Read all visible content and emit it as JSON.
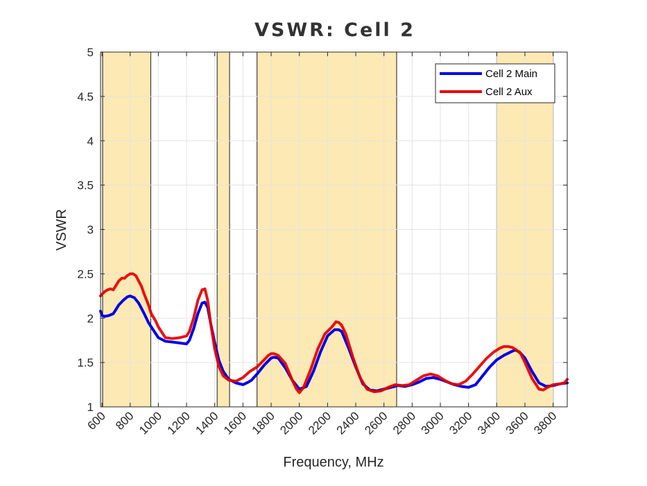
{
  "chart_data": {
    "type": "line",
    "title": "VSWR: Cell 2",
    "xlabel": "Frequency, MHz",
    "ylabel": "VSWR",
    "xlim": [
      590,
      3900
    ],
    "ylim": [
      1,
      5
    ],
    "grid": true,
    "legend_position": "top-right",
    "x_ticks": [
      600,
      800,
      1000,
      1200,
      1400,
      1600,
      1800,
      2000,
      2200,
      2400,
      2600,
      2800,
      3000,
      3200,
      3400,
      3600,
      3800
    ],
    "x_tick_labels": [
      "600",
      "800",
      "1000",
      "1200",
      "1400",
      "1600",
      "1800",
      "2000",
      "2200",
      "2400",
      "2600",
      "2800",
      "3000",
      "3200",
      "3400",
      "3600",
      "3800"
    ],
    "y_ticks": [
      1,
      1.5,
      2,
      2.5,
      3,
      3.5,
      4,
      4.5,
      5
    ],
    "y_tick_labels": [
      "1",
      "1.5",
      "2",
      "2.5",
      "3",
      "3.5",
      "4",
      "4.5",
      "5"
    ],
    "bands": [
      {
        "start": 605,
        "end": 946
      },
      {
        "start": 1417,
        "end": 1505
      },
      {
        "start": 1700,
        "end": 2690
      },
      {
        "start": 3400,
        "end": 3800
      }
    ],
    "band_color": "#fde9b3",
    "series": [
      {
        "name": "Cell 2 Main",
        "color": "#0000e6",
        "x": [
          590,
          600,
          620,
          650,
          680,
          700,
          720,
          750,
          780,
          800,
          830,
          860,
          880,
          900,
          930,
          950,
          1000,
          1050,
          1100,
          1150,
          1200,
          1220,
          1250,
          1280,
          1310,
          1330,
          1350,
          1370,
          1400,
          1430,
          1460,
          1500,
          1550,
          1600,
          1640,
          1660,
          1700,
          1750,
          1800,
          1820,
          1850,
          1900,
          1950,
          2000,
          2050,
          2100,
          2150,
          2200,
          2250,
          2280,
          2300,
          2350,
          2400,
          2450,
          2500,
          2550,
          2600,
          2650,
          2700,
          2750,
          2800,
          2850,
          2900,
          2950,
          3000,
          3050,
          3100,
          3150,
          3200,
          3250,
          3300,
          3350,
          3400,
          3450,
          3500,
          3530,
          3560,
          3600,
          3650,
          3700,
          3750,
          3800,
          3850,
          3900
        ],
        "y": [
          2.08,
          2.03,
          2.02,
          2.03,
          2.05,
          2.1,
          2.15,
          2.2,
          2.24,
          2.25,
          2.23,
          2.17,
          2.11,
          2.05,
          1.95,
          1.9,
          1.78,
          1.74,
          1.73,
          1.72,
          1.71,
          1.75,
          1.88,
          2.05,
          2.17,
          2.18,
          2.12,
          1.95,
          1.72,
          1.52,
          1.4,
          1.31,
          1.27,
          1.25,
          1.28,
          1.3,
          1.37,
          1.47,
          1.55,
          1.56,
          1.55,
          1.44,
          1.3,
          1.2,
          1.23,
          1.4,
          1.62,
          1.8,
          1.87,
          1.87,
          1.85,
          1.66,
          1.45,
          1.26,
          1.19,
          1.18,
          1.2,
          1.22,
          1.24,
          1.23,
          1.25,
          1.28,
          1.32,
          1.33,
          1.31,
          1.28,
          1.25,
          1.23,
          1.22,
          1.25,
          1.35,
          1.45,
          1.53,
          1.58,
          1.62,
          1.64,
          1.62,
          1.55,
          1.4,
          1.27,
          1.23,
          1.24,
          1.26,
          1.27
        ]
      },
      {
        "name": "Cell 2 Aux",
        "color": "#e60000",
        "x": [
          590,
          600,
          620,
          640,
          660,
          680,
          700,
          720,
          740,
          760,
          780,
          800,
          820,
          840,
          860,
          880,
          900,
          930,
          950,
          980,
          1000,
          1050,
          1100,
          1150,
          1200,
          1220,
          1250,
          1280,
          1310,
          1330,
          1350,
          1370,
          1400,
          1430,
          1460,
          1500,
          1550,
          1600,
          1650,
          1700,
          1750,
          1780,
          1800,
          1820,
          1850,
          1900,
          1950,
          1980,
          2000,
          2030,
          2080,
          2130,
          2180,
          2230,
          2260,
          2280,
          2300,
          2330,
          2380,
          2430,
          2480,
          2530,
          2580,
          2630,
          2680,
          2730,
          2780,
          2830,
          2880,
          2930,
          2980,
          3030,
          3080,
          3130,
          3180,
          3230,
          3280,
          3330,
          3380,
          3420,
          3450,
          3480,
          3510,
          3540,
          3570,
          3600,
          3650,
          3700,
          3730,
          3760,
          3800,
          3850,
          3880,
          3900
        ],
        "y": [
          2.25,
          2.27,
          2.3,
          2.32,
          2.33,
          2.32,
          2.37,
          2.42,
          2.45,
          2.45,
          2.48,
          2.5,
          2.5,
          2.48,
          2.42,
          2.36,
          2.27,
          2.15,
          2.05,
          1.97,
          1.9,
          1.78,
          1.77,
          1.78,
          1.8,
          1.85,
          2.0,
          2.2,
          2.32,
          2.33,
          2.2,
          1.95,
          1.65,
          1.45,
          1.35,
          1.3,
          1.29,
          1.33,
          1.4,
          1.45,
          1.53,
          1.58,
          1.6,
          1.6,
          1.58,
          1.49,
          1.3,
          1.2,
          1.16,
          1.22,
          1.42,
          1.65,
          1.82,
          1.9,
          1.96,
          1.95,
          1.92,
          1.82,
          1.56,
          1.33,
          1.2,
          1.17,
          1.18,
          1.22,
          1.25,
          1.24,
          1.25,
          1.3,
          1.35,
          1.37,
          1.35,
          1.3,
          1.26,
          1.25,
          1.29,
          1.37,
          1.46,
          1.55,
          1.62,
          1.66,
          1.68,
          1.68,
          1.67,
          1.64,
          1.6,
          1.5,
          1.32,
          1.2,
          1.19,
          1.22,
          1.25,
          1.26,
          1.27,
          1.31
        ]
      }
    ]
  }
}
